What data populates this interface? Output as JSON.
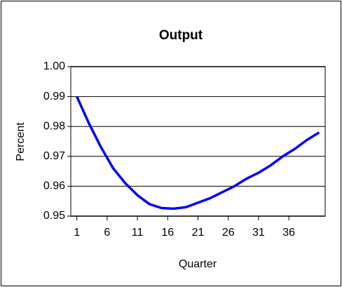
{
  "chart_data": {
    "type": "line",
    "title": "Output",
    "x_label": "Quarter",
    "y_label": "Percent",
    "x": [
      1,
      3,
      5,
      7,
      9,
      11,
      13,
      15,
      17,
      19,
      21,
      23,
      25,
      27,
      29,
      31,
      33,
      35,
      37,
      39,
      41
    ],
    "series": [
      {
        "name": "Output",
        "color": "#0000ff",
        "values": [
          0.99,
          0.981,
          0.973,
          0.966,
          0.961,
          0.957,
          0.954,
          0.9527,
          0.9525,
          0.953,
          0.9545,
          0.956,
          0.958,
          0.96,
          0.9625,
          0.9645,
          0.967,
          0.97,
          0.9725,
          0.9755,
          0.978
        ]
      }
    ],
    "xlim": [
      0,
      42
    ],
    "xticks": [
      1,
      6,
      11,
      16,
      21,
      26,
      31,
      36
    ],
    "ylim": [
      0.95,
      1.0
    ],
    "yticks": [
      {
        "value": 0.95,
        "label": "0.95"
      },
      {
        "value": 0.96,
        "label": "0.96"
      },
      {
        "value": 0.97,
        "label": "0.97"
      },
      {
        "value": 0.98,
        "label": "0.98"
      },
      {
        "value": 0.99,
        "label": "0.99"
      },
      {
        "value": 1.0,
        "label": "1.00"
      }
    ],
    "grid": true
  }
}
